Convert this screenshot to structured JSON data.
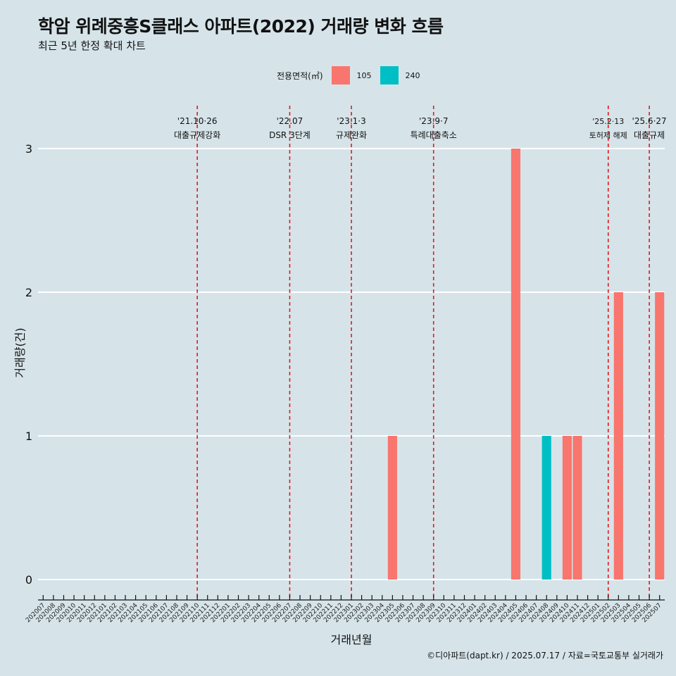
{
  "title": "학암 위례중흥S클래스 아파트(2022) 거래량 변화 흐름",
  "subtitle": "최근 5년 한정 확대 차트",
  "footer": "©디아파트(dapt.kr) / 2025.07.17 / 자료=국토교통부 실거래가",
  "legend": {
    "title": "전용면적(㎡)",
    "items": [
      {
        "label": "105",
        "color": "#f8766d"
      },
      {
        "label": "240",
        "color": "#00bfc4"
      }
    ]
  },
  "chart_data": {
    "type": "bar",
    "xlabel": "거래년월",
    "ylabel": "거래량(건)",
    "ylim": [
      0,
      3
    ],
    "yticks": [
      0,
      1,
      2,
      3
    ],
    "grid": "horizontal",
    "legend_position": "top",
    "categories": [
      "202007",
      "202008",
      "202009",
      "202010",
      "202011",
      "202012",
      "202101",
      "202102",
      "202103",
      "202104",
      "202105",
      "202106",
      "202107",
      "202108",
      "202109",
      "202110",
      "202111",
      "202112",
      "202201",
      "202202",
      "202203",
      "202204",
      "202205",
      "202206",
      "202207",
      "202208",
      "202209",
      "202210",
      "202211",
      "202212",
      "202301",
      "202302",
      "202303",
      "202304",
      "202305",
      "202306",
      "202307",
      "202308",
      "202309",
      "202310",
      "202311",
      "202312",
      "202401",
      "202402",
      "202403",
      "202404",
      "202405",
      "202406",
      "202407",
      "202408",
      "202409",
      "202410",
      "202411",
      "202412",
      "202501",
      "202502",
      "202503",
      "202504",
      "202505",
      "202506",
      "202507"
    ],
    "bars": [
      {
        "x": "202305",
        "series": "105",
        "value": 1
      },
      {
        "x": "202405",
        "series": "105",
        "value": 3
      },
      {
        "x": "202408",
        "series": "240",
        "value": 1
      },
      {
        "x": "202410",
        "series": "105",
        "value": 1
      },
      {
        "x": "202411",
        "series": "105",
        "value": 1
      },
      {
        "x": "202503",
        "series": "105",
        "value": 2
      },
      {
        "x": "202507",
        "series": "105",
        "value": 2
      }
    ],
    "annotations": [
      {
        "x": "202110",
        "date": "'21.10·26",
        "label": "대출규제강화"
      },
      {
        "x": "202207",
        "date": "'22.07",
        "label": "DSR 3단계"
      },
      {
        "x": "202301",
        "date": "'23.1·3",
        "label": "규제완화"
      },
      {
        "x": "202309",
        "date": "'23.9·7",
        "label": "특례대출축소"
      },
      {
        "x": "202502",
        "date": "'25.2·13",
        "label": "토허제 해제"
      },
      {
        "x": "202506",
        "date": "'25.6·27",
        "label": "대출규제"
      }
    ]
  }
}
